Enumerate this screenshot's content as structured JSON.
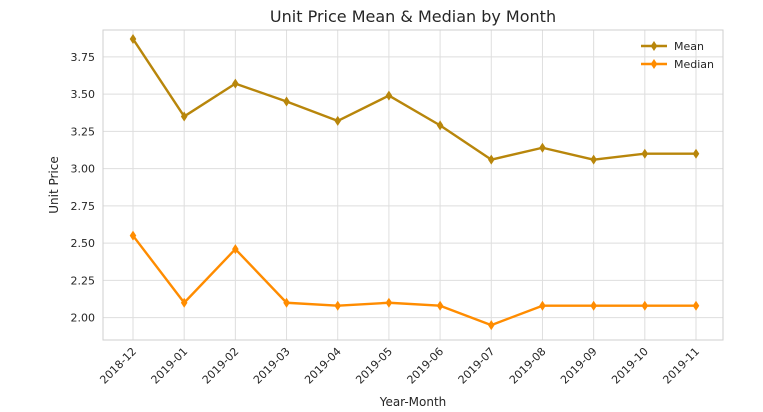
{
  "chart_data": {
    "type": "line",
    "title": "Unit Price Mean & Median by Month",
    "xlabel": "Year-Month",
    "ylabel": "Unit Price",
    "categories": [
      "2018-12",
      "2019-01",
      "2019-02",
      "2019-03",
      "2019-04",
      "2019-05",
      "2019-06",
      "2019-07",
      "2019-08",
      "2019-09",
      "2019-10",
      "2019-11"
    ],
    "ylim": [
      1.85,
      3.93
    ],
    "yticks": [
      2.0,
      2.25,
      2.5,
      2.75,
      3.0,
      3.25,
      3.5,
      3.75
    ],
    "ytick_labels": [
      "2.00",
      "2.25",
      "2.50",
      "2.75",
      "3.00",
      "3.25",
      "3.50",
      "3.75"
    ],
    "grid": true,
    "legend_position": "top-right",
    "series": [
      {
        "name": "Mean",
        "color": "#b8860b",
        "marker": "diamond",
        "values": [
          3.87,
          3.35,
          3.57,
          3.45,
          3.32,
          3.49,
          3.29,
          3.06,
          3.14,
          3.06,
          3.1,
          3.1
        ]
      },
      {
        "name": "Median",
        "color": "#ff8c00",
        "marker": "diamond",
        "values": [
          2.55,
          2.1,
          2.46,
          2.1,
          2.08,
          2.1,
          2.08,
          1.95,
          2.08,
          2.08,
          2.08,
          2.08
        ]
      }
    ]
  }
}
